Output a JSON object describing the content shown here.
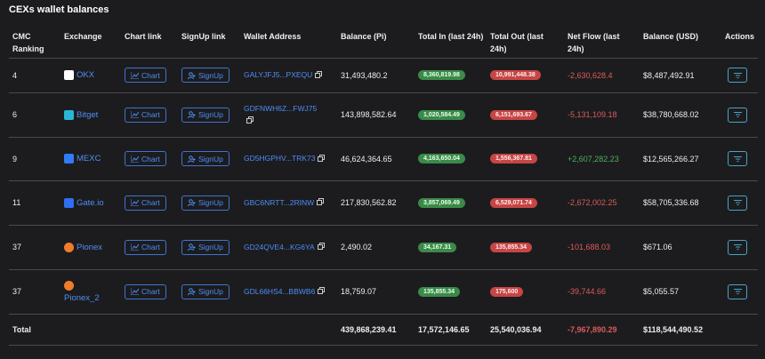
{
  "title": "CEXs wallet balances",
  "table": {
    "headers": [
      "CMC Ranking",
      "Exchange",
      "Chart link",
      "SignUp link",
      "Wallet Address",
      "Balance (Pi)",
      "Total In (last 24h)",
      "Total Out (last 24h)",
      "Net Flow (last 24h)",
      "Balance (USD)",
      "Actions"
    ],
    "chart_button": "Chart",
    "signup_button": "SignUp",
    "rows": [
      [
        "4",
        "OKX",
        "GALYJFJ5...PXEQU",
        "31,493,480.2",
        "8,360,819.98",
        "10,991,448.38",
        "-2,630,628.4",
        "$8,487,492.91"
      ],
      [
        "6",
        "Bitget",
        "GDFNWH6Z...FWJ75",
        "143,898,582.64",
        "1,020,584.49",
        "6,151,693.67",
        "-5,131,109.18",
        "$38,780,668.02"
      ],
      [
        "9",
        "MEXC",
        "GD5HGPHV...TRK73",
        "46,624,364.65",
        "4,163,650.04",
        "1,556,367.81",
        "+2,607,282.23",
        "$12,565,266.27"
      ],
      [
        "11",
        "Gate.io",
        "GBC6NRTT...2RINW",
        "217,830,562.82",
        "3,857,069.49",
        "6,529,071.74",
        "-2,672,002.25",
        "$58,705,336.68"
      ],
      [
        "37",
        "Pionex",
        "GD24QVE4...KG6YA",
        "2,490.02",
        "34,167.31",
        "135,855.34",
        "-101,688.03",
        "$671.06"
      ],
      [
        "37",
        "Pionex_2",
        "GDL66HS4...BBWB6",
        "18,759.07",
        "135,855.34",
        "175,600",
        "-39,744.66",
        "$5,055.57"
      ]
    ],
    "total": [
      "Total",
      "439,868,239.41",
      "17,572,146.65",
      "25,540,036.94",
      "-7,967,890.29",
      "$118,544,490.52"
    ]
  }
}
